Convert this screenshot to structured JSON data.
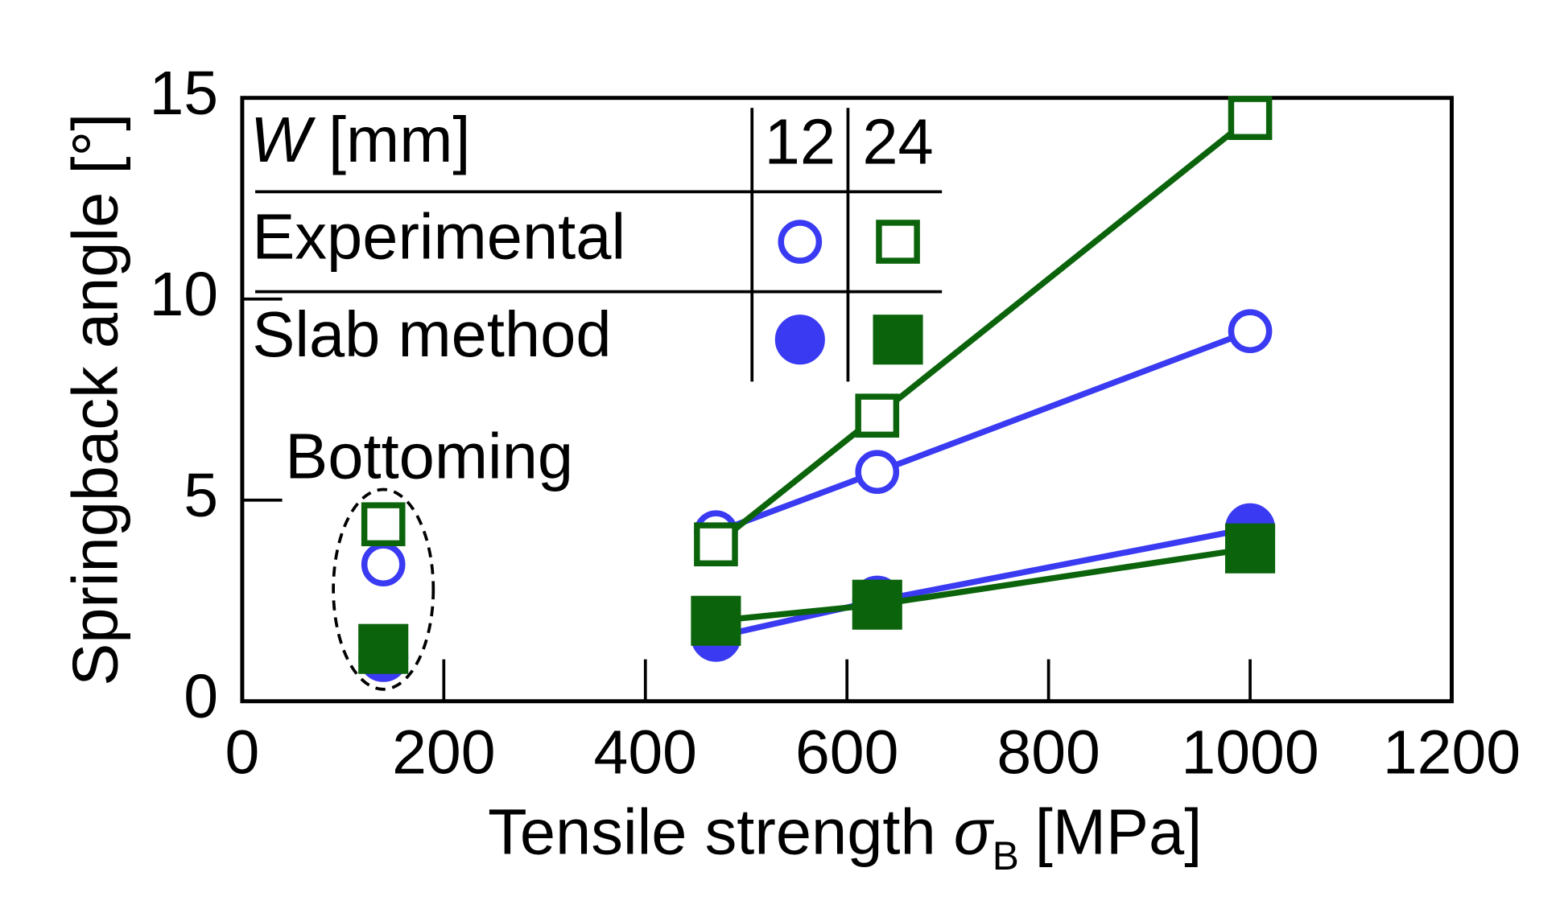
{
  "chart_data": {
    "type": "line",
    "xlabel": {
      "text": "Tensile strength",
      "symbol": "σ",
      "subscript": "B",
      "unit": "[MPa]"
    },
    "ylabel": "Springback angle [°]",
    "xlim": [
      0,
      1200
    ],
    "xticks": [
      0,
      200,
      400,
      600,
      800,
      1000,
      1200
    ],
    "ylim": [
      0,
      15
    ],
    "yticks": [
      0,
      5,
      10,
      15
    ],
    "annotation": {
      "text": "Bottoming",
      "x": 140
    },
    "legend": {
      "variable": "W",
      "unit": "[mm]",
      "columns": [
        "12",
        "24"
      ],
      "rows": [
        "Experimental",
        "Slab method"
      ]
    },
    "series": [
      {
        "color": "#3a3af2",
        "marker": "circle",
        "filled": false,
        "x": [
          140,
          470,
          630,
          1000
        ],
        "values": [
          3.4,
          4.2,
          5.7,
          9.2
        ]
      },
      {
        "color": "#0b640b",
        "marker": "square",
        "filled": false,
        "x": [
          140,
          470,
          630,
          1000
        ],
        "values": [
          4.4,
          3.9,
          7.1,
          14.5
        ]
      },
      {
        "color": "#3a3af2",
        "marker": "circle",
        "filled": true,
        "x": [
          140,
          470,
          630,
          1000
        ],
        "values": [
          1.1,
          1.6,
          2.5,
          4.3
        ]
      },
      {
        "color": "#0b640b",
        "marker": "square",
        "filled": true,
        "x": [
          140,
          470,
          630,
          1000
        ],
        "values": [
          1.3,
          2.0,
          2.4,
          3.8
        ]
      }
    ]
  }
}
